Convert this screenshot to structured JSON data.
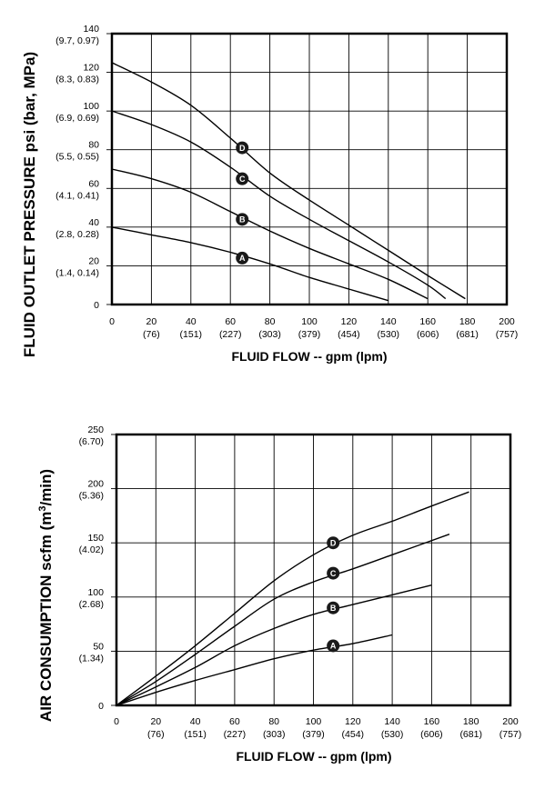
{
  "chart_data": [
    {
      "type": "line",
      "xlabel": "FLUID FLOW -- gpm (lpm)",
      "ylabel": "FLUID OUTLET PRESSURE psi (bar, MPa)",
      "xlim": [
        0,
        200
      ],
      "ylim": [
        0,
        140
      ],
      "grid": true,
      "x_ticks": [
        {
          "value": 0,
          "label": "0",
          "sub": ""
        },
        {
          "value": 20,
          "label": "20",
          "sub": "(76)"
        },
        {
          "value": 40,
          "label": "40",
          "sub": "(151)"
        },
        {
          "value": 60,
          "label": "60",
          "sub": "(227)"
        },
        {
          "value": 80,
          "label": "80",
          "sub": "(303)"
        },
        {
          "value": 100,
          "label": "100",
          "sub": "(379)"
        },
        {
          "value": 120,
          "label": "120",
          "sub": "(454)"
        },
        {
          "value": 140,
          "label": "140",
          "sub": "(530)"
        },
        {
          "value": 160,
          "label": "160",
          "sub": "(606)"
        },
        {
          "value": 180,
          "label": "180",
          "sub": "(681)"
        },
        {
          "value": 200,
          "label": "200",
          "sub": "(757)"
        }
      ],
      "y_ticks": [
        {
          "value": 0,
          "label": "0",
          "sub": ""
        },
        {
          "value": 20,
          "label": "20",
          "sub": "(1.4, 0.14)"
        },
        {
          "value": 40,
          "label": "40",
          "sub": "(2.8, 0.28)"
        },
        {
          "value": 60,
          "label": "60",
          "sub": "(4.1, 0.41)"
        },
        {
          "value": 80,
          "label": "80",
          "sub": "(5.5, 0.55)"
        },
        {
          "value": 100,
          "label": "100",
          "sub": "(6.9, 0.69)"
        },
        {
          "value": 120,
          "label": "120",
          "sub": "(8.3, 0.83)"
        },
        {
          "value": 140,
          "label": "140",
          "sub": "(9.7, 0.97)"
        }
      ],
      "series": [
        {
          "name": "A",
          "label_at": [
            66,
            24
          ],
          "points": [
            [
              0,
              40
            ],
            [
              20,
              36
            ],
            [
              40,
              32
            ],
            [
              60,
              27
            ],
            [
              80,
              21
            ],
            [
              100,
              14
            ],
            [
              120,
              8
            ],
            [
              140,
              2
            ]
          ]
        },
        {
          "name": "B",
          "label_at": [
            66,
            44
          ],
          "points": [
            [
              0,
              70
            ],
            [
              20,
              65
            ],
            [
              40,
              58
            ],
            [
              60,
              48
            ],
            [
              80,
              38
            ],
            [
              100,
              29
            ],
            [
              120,
              21
            ],
            [
              140,
              13
            ],
            [
              160,
              3
            ]
          ]
        },
        {
          "name": "C",
          "label_at": [
            66,
            65
          ],
          "points": [
            [
              0,
              100
            ],
            [
              20,
              93
            ],
            [
              40,
              84
            ],
            [
              60,
              71
            ],
            [
              80,
              56
            ],
            [
              100,
              44
            ],
            [
              120,
              33
            ],
            [
              140,
              22
            ],
            [
              160,
              10
            ],
            [
              169,
              3
            ]
          ]
        },
        {
          "name": "D",
          "label_at": [
            66,
            81
          ],
          "points": [
            [
              0,
              125
            ],
            [
              20,
              115
            ],
            [
              40,
              103
            ],
            [
              60,
              86
            ],
            [
              80,
              68
            ],
            [
              100,
              54
            ],
            [
              120,
              41
            ],
            [
              140,
              28
            ],
            [
              160,
              15
            ],
            [
              179,
              3
            ]
          ]
        }
      ]
    },
    {
      "type": "line",
      "xlabel": "FLUID FLOW -- gpm (lpm)",
      "ylabel": "AIR CONSUMPTION scfm (m3/min)",
      "xlim": [
        0,
        200
      ],
      "ylim": [
        0,
        250
      ],
      "grid": true,
      "x_ticks": [
        {
          "value": 0,
          "label": "0",
          "sub": ""
        },
        {
          "value": 20,
          "label": "20",
          "sub": "(76)"
        },
        {
          "value": 40,
          "label": "40",
          "sub": "(151)"
        },
        {
          "value": 60,
          "label": "60",
          "sub": "(227)"
        },
        {
          "value": 80,
          "label": "80",
          "sub": "(303)"
        },
        {
          "value": 100,
          "label": "100",
          "sub": "(379)"
        },
        {
          "value": 120,
          "label": "120",
          "sub": "(454)"
        },
        {
          "value": 140,
          "label": "140",
          "sub": "(530)"
        },
        {
          "value": 160,
          "label": "160",
          "sub": "(606)"
        },
        {
          "value": 180,
          "label": "180",
          "sub": "(681)"
        },
        {
          "value": 200,
          "label": "200",
          "sub": "(757)"
        }
      ],
      "y_ticks": [
        {
          "value": 0,
          "label": "0",
          "sub": ""
        },
        {
          "value": 50,
          "label": "50",
          "sub": "(1.34)"
        },
        {
          "value": 100,
          "label": "100",
          "sub": "(2.68)"
        },
        {
          "value": 150,
          "label": "150",
          "sub": "(4.02)"
        },
        {
          "value": 200,
          "label": "200",
          "sub": "(5.36)"
        },
        {
          "value": 250,
          "label": "250",
          "sub": "(6.70)"
        }
      ],
      "series": [
        {
          "name": "A",
          "label_at": [
            110,
            55
          ],
          "points": [
            [
              0,
              0
            ],
            [
              20,
              12
            ],
            [
              40,
              23
            ],
            [
              60,
              33
            ],
            [
              80,
              43
            ],
            [
              100,
              51
            ],
            [
              120,
              57
            ],
            [
              140,
              65
            ]
          ]
        },
        {
          "name": "B",
          "label_at": [
            110,
            90
          ],
          "points": [
            [
              0,
              0
            ],
            [
              20,
              17
            ],
            [
              40,
              35
            ],
            [
              60,
              55
            ],
            [
              80,
              71
            ],
            [
              100,
              84
            ],
            [
              120,
              93
            ],
            [
              140,
              102
            ],
            [
              160,
              111
            ]
          ]
        },
        {
          "name": "C",
          "label_at": [
            110,
            122
          ],
          "points": [
            [
              0,
              0
            ],
            [
              20,
              22
            ],
            [
              40,
              47
            ],
            [
              60,
              73
            ],
            [
              80,
              98
            ],
            [
              100,
              114
            ],
            [
              120,
              126
            ],
            [
              140,
              139
            ],
            [
              169,
              158
            ]
          ]
        },
        {
          "name": "D",
          "label_at": [
            110,
            150
          ],
          "points": [
            [
              0,
              0
            ],
            [
              20,
              27
            ],
            [
              40,
              55
            ],
            [
              60,
              85
            ],
            [
              80,
              115
            ],
            [
              100,
              139
            ],
            [
              120,
              157
            ],
            [
              140,
              170
            ],
            [
              160,
              184
            ],
            [
              179,
              197
            ]
          ]
        }
      ]
    }
  ]
}
